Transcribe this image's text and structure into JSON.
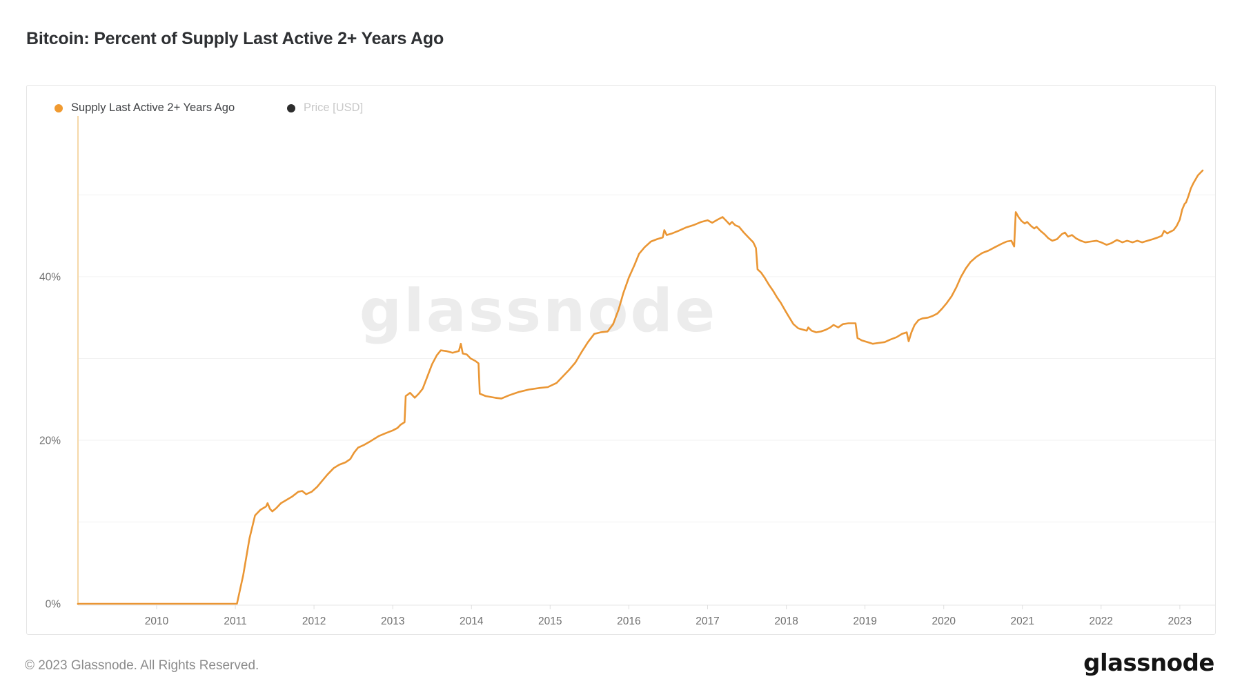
{
  "header": {
    "title": "Bitcoin: Percent of Supply Last Active 2+ Years Ago"
  },
  "legend": {
    "items": [
      {
        "label": "Supply Last Active 2+ Years Ago",
        "color": "#F09A30",
        "enabled": true
      },
      {
        "label": "Price [USD]",
        "color": "#2D2D2D",
        "enabled": false
      }
    ]
  },
  "watermark": "glassnode",
  "footer": {
    "copyright": "© 2023 Glassnode. All Rights Reserved.",
    "logo": "glassnode"
  },
  "colors": {
    "line": "#EA9634",
    "grid": "#F1F1F1",
    "axis_line": "#F5D8A8",
    "baseline": "#E7E7E7",
    "tick": "#DFDFDF",
    "tick_text": "#6F6F6F"
  },
  "chart_data": {
    "type": "line",
    "title": "Bitcoin: Percent of Supply Last Active 2+ Years Ago",
    "xlabel": "",
    "ylabel": "",
    "legend_position": "top-left",
    "grid": true,
    "x_axis": {
      "ticks": [
        2010,
        2011,
        2012,
        2013,
        2014,
        2015,
        2016,
        2017,
        2018,
        2019,
        2020,
        2021,
        2022,
        2023
      ],
      "range": [
        2008.3,
        2023.45
      ]
    },
    "y_axis": {
      "unit": "%",
      "range": [
        0,
        59
      ],
      "ticks": [
        {
          "value": 0,
          "label": "0%"
        },
        {
          "value": 20,
          "label": "20%"
        },
        {
          "value": 40,
          "label": "40%"
        }
      ],
      "gridlines": [
        10,
        20,
        30,
        40,
        50
      ]
    },
    "series": [
      {
        "name": "Supply Last Active 2+ Years Ago",
        "color": "#EA9634",
        "points": [
          [
            2009.0,
            0
          ],
          [
            2009.5,
            0
          ],
          [
            2010.0,
            0
          ],
          [
            2010.5,
            0
          ],
          [
            2011.02,
            0
          ],
          [
            2011.1,
            3.5
          ],
          [
            2011.18,
            8.0
          ],
          [
            2011.25,
            10.8
          ],
          [
            2011.32,
            11.5
          ],
          [
            2011.39,
            11.9
          ],
          [
            2011.41,
            12.3
          ],
          [
            2011.44,
            11.6
          ],
          [
            2011.47,
            11.3
          ],
          [
            2011.52,
            11.7
          ],
          [
            2011.58,
            12.3
          ],
          [
            2011.65,
            12.7
          ],
          [
            2011.72,
            13.1
          ],
          [
            2011.8,
            13.7
          ],
          [
            2011.85,
            13.8
          ],
          [
            2011.9,
            13.4
          ],
          [
            2011.97,
            13.7
          ],
          [
            2012.04,
            14.3
          ],
          [
            2012.1,
            15.0
          ],
          [
            2012.17,
            15.8
          ],
          [
            2012.25,
            16.6
          ],
          [
            2012.32,
            17.0
          ],
          [
            2012.4,
            17.3
          ],
          [
            2012.46,
            17.7
          ],
          [
            2012.51,
            18.5
          ],
          [
            2012.56,
            19.1
          ],
          [
            2012.63,
            19.4
          ],
          [
            2012.72,
            19.9
          ],
          [
            2012.82,
            20.5
          ],
          [
            2012.92,
            20.9
          ],
          [
            2013.0,
            21.2
          ],
          [
            2013.06,
            21.5
          ],
          [
            2013.1,
            21.9
          ],
          [
            2013.15,
            22.2
          ],
          [
            2013.165,
            25.4
          ],
          [
            2013.22,
            25.8
          ],
          [
            2013.28,
            25.2
          ],
          [
            2013.33,
            25.7
          ],
          [
            2013.38,
            26.3
          ],
          [
            2013.44,
            27.8
          ],
          [
            2013.5,
            29.3
          ],
          [
            2013.56,
            30.4
          ],
          [
            2013.61,
            31.0
          ],
          [
            2013.68,
            30.9
          ],
          [
            2013.76,
            30.7
          ],
          [
            2013.84,
            30.9
          ],
          [
            2013.865,
            31.8
          ],
          [
            2013.89,
            30.6
          ],
          [
            2013.94,
            30.5
          ],
          [
            2013.99,
            30.0
          ],
          [
            2014.05,
            29.7
          ],
          [
            2014.09,
            29.4
          ],
          [
            2014.105,
            25.7
          ],
          [
            2014.18,
            25.4
          ],
          [
            2014.3,
            25.2
          ],
          [
            2014.38,
            25.1
          ],
          [
            2014.48,
            25.5
          ],
          [
            2014.6,
            25.9
          ],
          [
            2014.73,
            26.2
          ],
          [
            2014.87,
            26.4
          ],
          [
            2014.97,
            26.5
          ],
          [
            2015.08,
            27.0
          ],
          [
            2015.16,
            27.8
          ],
          [
            2015.24,
            28.6
          ],
          [
            2015.32,
            29.5
          ],
          [
            2015.4,
            30.8
          ],
          [
            2015.48,
            32.0
          ],
          [
            2015.56,
            33.0
          ],
          [
            2015.64,
            33.2
          ],
          [
            2015.73,
            33.3
          ],
          [
            2015.8,
            34.2
          ],
          [
            2015.87,
            36.0
          ],
          [
            2015.93,
            38.0
          ],
          [
            2016.0,
            39.9
          ],
          [
            2016.07,
            41.4
          ],
          [
            2016.13,
            42.8
          ],
          [
            2016.2,
            43.6
          ],
          [
            2016.28,
            44.3
          ],
          [
            2016.36,
            44.6
          ],
          [
            2016.43,
            44.8
          ],
          [
            2016.45,
            45.7
          ],
          [
            2016.48,
            45.1
          ],
          [
            2016.55,
            45.3
          ],
          [
            2016.63,
            45.6
          ],
          [
            2016.72,
            46.0
          ],
          [
            2016.82,
            46.3
          ],
          [
            2016.92,
            46.7
          ],
          [
            2017.0,
            46.9
          ],
          [
            2017.06,
            46.6
          ],
          [
            2017.13,
            47.0
          ],
          [
            2017.19,
            47.3
          ],
          [
            2017.24,
            46.8
          ],
          [
            2017.28,
            46.4
          ],
          [
            2017.31,
            46.7
          ],
          [
            2017.35,
            46.3
          ],
          [
            2017.4,
            46.1
          ],
          [
            2017.46,
            45.4
          ],
          [
            2017.52,
            44.8
          ],
          [
            2017.58,
            44.2
          ],
          [
            2017.615,
            43.5
          ],
          [
            2017.635,
            40.9
          ],
          [
            2017.68,
            40.5
          ],
          [
            2017.73,
            39.8
          ],
          [
            2017.78,
            39.0
          ],
          [
            2017.83,
            38.3
          ],
          [
            2017.88,
            37.5
          ],
          [
            2017.93,
            36.8
          ],
          [
            2017.99,
            35.8
          ],
          [
            2018.04,
            35.0
          ],
          [
            2018.09,
            34.2
          ],
          [
            2018.15,
            33.7
          ],
          [
            2018.22,
            33.5
          ],
          [
            2018.26,
            33.4
          ],
          [
            2018.28,
            33.8
          ],
          [
            2018.32,
            33.4
          ],
          [
            2018.38,
            33.2
          ],
          [
            2018.44,
            33.3
          ],
          [
            2018.5,
            33.5
          ],
          [
            2018.56,
            33.8
          ],
          [
            2018.6,
            34.1
          ],
          [
            2018.66,
            33.8
          ],
          [
            2018.72,
            34.2
          ],
          [
            2018.79,
            34.3
          ],
          [
            2018.88,
            34.3
          ],
          [
            2018.905,
            32.5
          ],
          [
            2018.96,
            32.2
          ],
          [
            2019.03,
            32.0
          ],
          [
            2019.1,
            31.8
          ],
          [
            2019.17,
            31.9
          ],
          [
            2019.25,
            32.0
          ],
          [
            2019.32,
            32.3
          ],
          [
            2019.4,
            32.6
          ],
          [
            2019.47,
            33.0
          ],
          [
            2019.53,
            33.2
          ],
          [
            2019.555,
            32.1
          ],
          [
            2019.59,
            33.2
          ],
          [
            2019.63,
            34.1
          ],
          [
            2019.68,
            34.7
          ],
          [
            2019.73,
            34.9
          ],
          [
            2019.8,
            35.0
          ],
          [
            2019.86,
            35.2
          ],
          [
            2019.92,
            35.5
          ],
          [
            2019.98,
            36.1
          ],
          [
            2020.04,
            36.8
          ],
          [
            2020.1,
            37.6
          ],
          [
            2020.16,
            38.7
          ],
          [
            2020.22,
            40.0
          ],
          [
            2020.28,
            41.0
          ],
          [
            2020.34,
            41.8
          ],
          [
            2020.41,
            42.4
          ],
          [
            2020.49,
            42.9
          ],
          [
            2020.57,
            43.2
          ],
          [
            2020.65,
            43.6
          ],
          [
            2020.73,
            44.0
          ],
          [
            2020.8,
            44.3
          ],
          [
            2020.86,
            44.4
          ],
          [
            2020.895,
            43.7
          ],
          [
            2020.915,
            47.9
          ],
          [
            2020.95,
            47.3
          ],
          [
            2020.99,
            46.8
          ],
          [
            2021.03,
            46.5
          ],
          [
            2021.06,
            46.7
          ],
          [
            2021.11,
            46.2
          ],
          [
            2021.15,
            45.9
          ],
          [
            2021.18,
            46.1
          ],
          [
            2021.23,
            45.6
          ],
          [
            2021.28,
            45.2
          ],
          [
            2021.33,
            44.7
          ],
          [
            2021.38,
            44.4
          ],
          [
            2021.44,
            44.6
          ],
          [
            2021.5,
            45.2
          ],
          [
            2021.54,
            45.4
          ],
          [
            2021.58,
            44.9
          ],
          [
            2021.63,
            45.1
          ],
          [
            2021.68,
            44.7
          ],
          [
            2021.74,
            44.4
          ],
          [
            2021.8,
            44.2
          ],
          [
            2021.87,
            44.3
          ],
          [
            2021.94,
            44.4
          ],
          [
            2022.0,
            44.2
          ],
          [
            2022.07,
            43.9
          ],
          [
            2022.13,
            44.1
          ],
          [
            2022.2,
            44.5
          ],
          [
            2022.27,
            44.2
          ],
          [
            2022.33,
            44.4
          ],
          [
            2022.4,
            44.2
          ],
          [
            2022.46,
            44.4
          ],
          [
            2022.52,
            44.2
          ],
          [
            2022.59,
            44.4
          ],
          [
            2022.66,
            44.6
          ],
          [
            2022.72,
            44.8
          ],
          [
            2022.77,
            45.0
          ],
          [
            2022.8,
            45.6
          ],
          [
            2022.84,
            45.3
          ],
          [
            2022.88,
            45.5
          ],
          [
            2022.92,
            45.7
          ],
          [
            2022.96,
            46.2
          ],
          [
            2023.0,
            47.0
          ],
          [
            2023.03,
            48.2
          ],
          [
            2023.06,
            48.9
          ],
          [
            2023.08,
            49.1
          ],
          [
            2023.11,
            49.9
          ],
          [
            2023.14,
            50.8
          ],
          [
            2023.17,
            51.4
          ],
          [
            2023.2,
            51.9
          ],
          [
            2023.23,
            52.4
          ],
          [
            2023.26,
            52.7
          ],
          [
            2023.29,
            53.0
          ]
        ]
      }
    ]
  }
}
